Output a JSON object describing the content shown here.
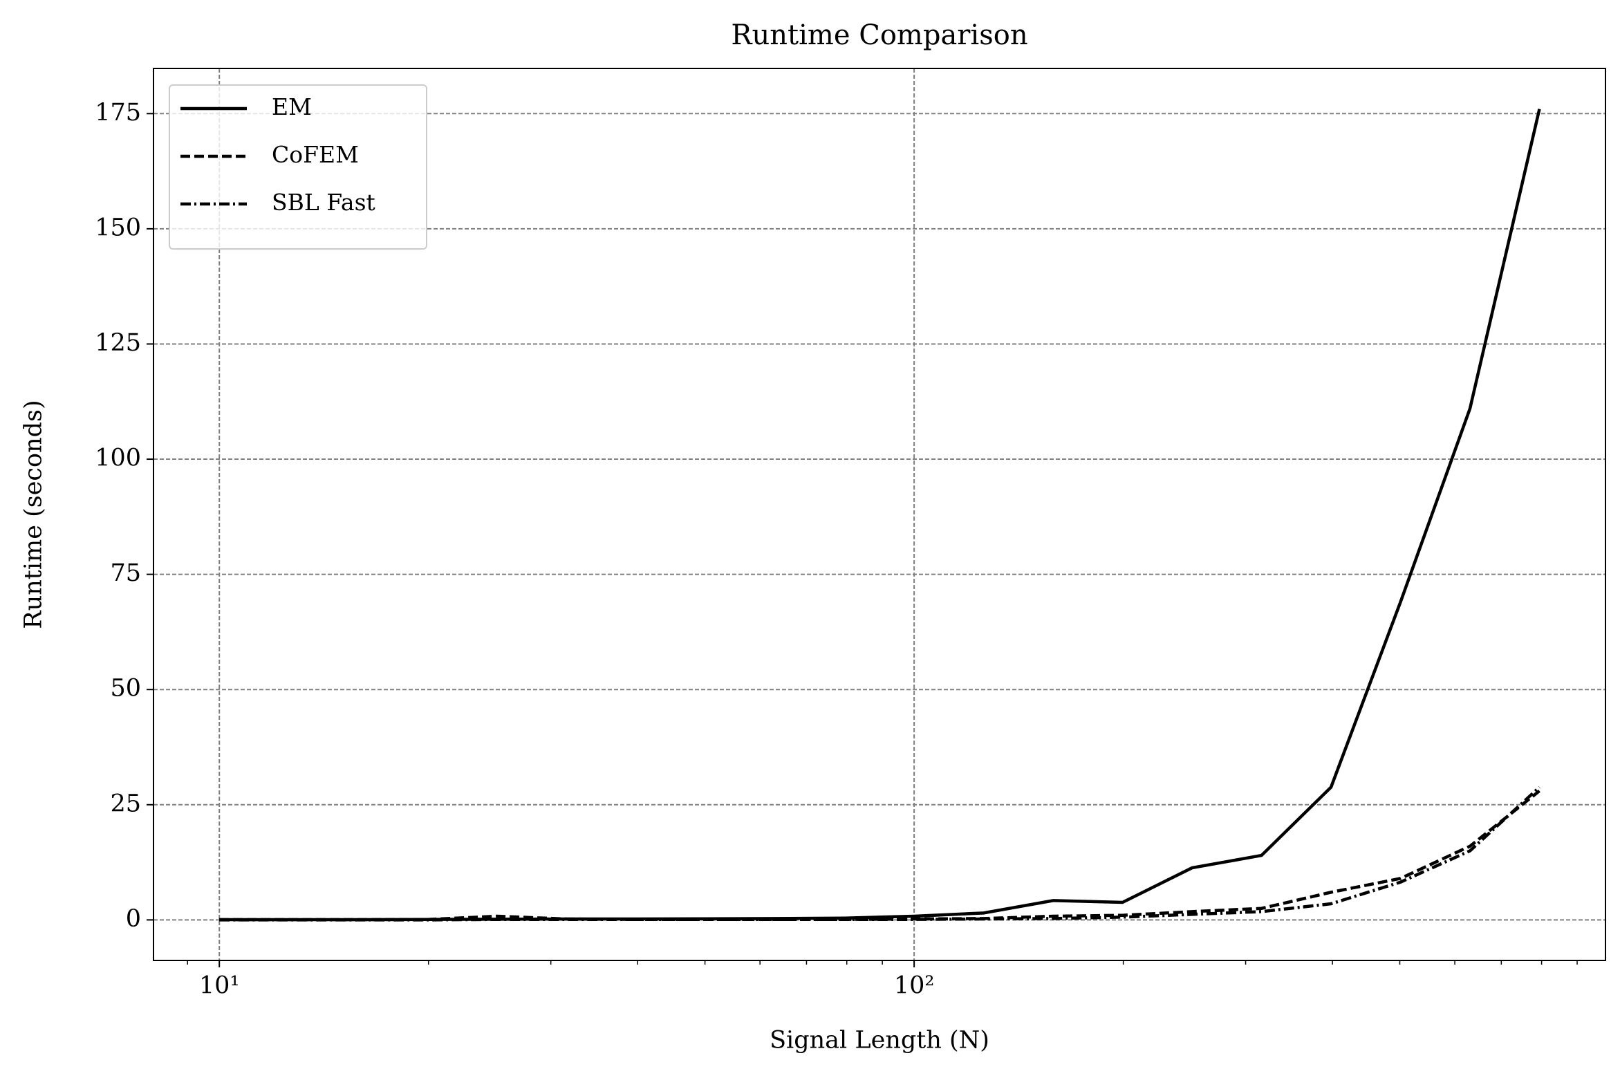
{
  "chart_data": {
    "type": "line",
    "title": "Runtime Comparison",
    "xlabel": "Signal Length (N)",
    "ylabel": "Runtime (seconds)",
    "x": [
      10,
      12.59,
      15.85,
      19.95,
      25.12,
      31.62,
      39.81,
      50.12,
      63.1,
      79.43,
      100,
      125.9,
      158.5,
      199.5,
      251.2,
      316.2,
      398.1,
      501.2,
      631,
      794.3
    ],
    "series": [
      {
        "name": "EM",
        "color": "#000000",
        "dash": "solid",
        "values": [
          0.05,
          0.05,
          0.05,
          0.1,
          0.15,
          0.2,
          0.2,
          0.25,
          0.3,
          0.4,
          0.8,
          1.5,
          4.2,
          3.8,
          11.3,
          14,
          28.8,
          69,
          111,
          176
        ]
      },
      {
        "name": "CoFEM",
        "color": "#000000",
        "dash": "dashed",
        "values": [
          0.05,
          0.05,
          0.05,
          0.1,
          0.8,
          0.2,
          0.1,
          0.1,
          0.1,
          0.1,
          0.2,
          0.3,
          0.8,
          1.0,
          1.8,
          2.5,
          6,
          9,
          16,
          28
        ]
      },
      {
        "name": "SBL Fast",
        "color": "#000000",
        "dash": "dashdot",
        "values": [
          0,
          0,
          0,
          0,
          0.1,
          0.1,
          0.1,
          0.1,
          0.1,
          0.1,
          0.1,
          0.2,
          0.3,
          0.6,
          1.2,
          1.8,
          3.5,
          8.2,
          15,
          28.8
        ]
      }
    ],
    "xscale": "log",
    "xlim": [
      8.04,
      988.6
    ],
    "xticks": [
      {
        "value": 10,
        "label": "10¹"
      },
      {
        "value": 100,
        "label": "10²"
      }
    ],
    "xminorticks": [
      9,
      20,
      30,
      40,
      50,
      60,
      70,
      80,
      90,
      200,
      300,
      400,
      500,
      600,
      700,
      800,
      900
    ],
    "ylim": [
      -8.8,
      184.8
    ],
    "yticks": [
      0,
      25,
      50,
      75,
      100,
      125,
      150,
      175
    ],
    "grid": true,
    "legend": "upper left"
  }
}
